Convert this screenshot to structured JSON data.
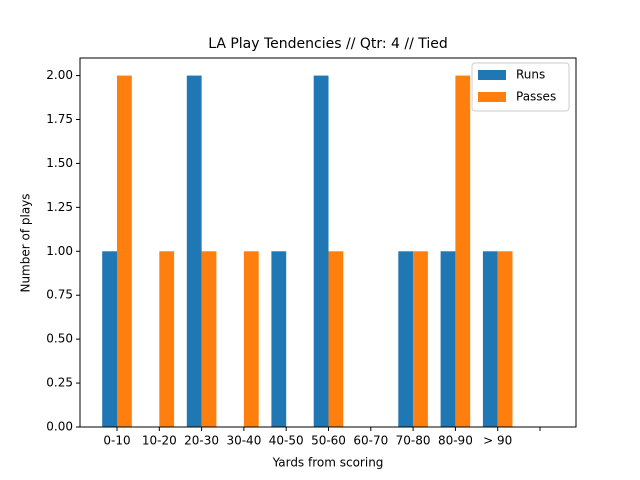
{
  "chart_data": {
    "type": "bar",
    "title": "LA Play Tendencies // Qtr: 4 // Tied",
    "x_label": "Yards from scoring",
    "y_label": "Number of plays",
    "categories": [
      "0-10",
      "10-20",
      "20-30",
      "30-40",
      "40-50",
      "50-60",
      "60-70",
      "70-80",
      "80-90",
      "> 90",
      null
    ],
    "series": [
      {
        "name": "Runs",
        "color": "#1f77b4",
        "values": [
          1,
          0,
          2,
          0,
          1,
          2,
          0,
          1,
          1,
          1,
          0
        ]
      },
      {
        "name": "Passes",
        "color": "#ff7f0e",
        "values": [
          2,
          1,
          1,
          1,
          0,
          1,
          0,
          1,
          2,
          1,
          0
        ]
      }
    ],
    "ylim": [
      0,
      2.1
    ],
    "yticks": [
      {
        "value": 0,
        "label": "0.00"
      },
      {
        "value": 0.25,
        "label": "0.25"
      },
      {
        "value": 0.5,
        "label": "0.50"
      },
      {
        "value": 0.75,
        "label": "0.75"
      },
      {
        "value": 1,
        "label": "1.00"
      },
      {
        "value": 1.25,
        "label": "1.25"
      },
      {
        "value": 1.5,
        "label": "1.50"
      },
      {
        "value": 1.75,
        "label": "1.75"
      },
      {
        "value": 2,
        "label": "2.00"
      }
    ],
    "legend": "upper right"
  }
}
